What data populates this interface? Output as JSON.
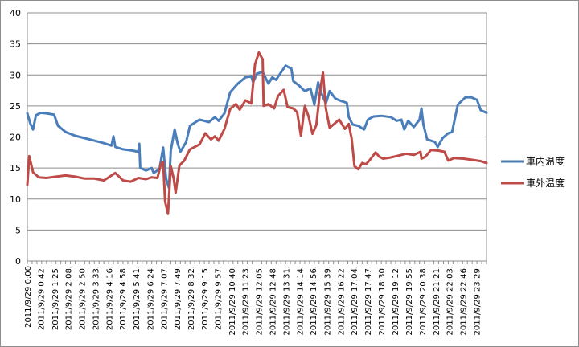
{
  "chart_data": {
    "type": "line",
    "title": "",
    "xlabel": "",
    "ylabel": "",
    "ylim": [
      0,
      40
    ],
    "yticks": [
      0,
      5,
      10,
      15,
      20,
      25,
      30,
      35,
      40
    ],
    "grid": "horizontal",
    "legend_position": "right",
    "x_tick_labels": [
      "2011/9/29 0:00",
      "2011/9/29 0:42.",
      "2011/9/29 1:25.",
      "2011/9/29 2:08.",
      "2011/9/29 2:50.",
      "2011/9/29 3:33.",
      "2011/9/29 4:16.",
      "2011/9/29 4:58.",
      "2011/9/29 5:41.",
      "2011/9/29 6:24.",
      "2011/9/29 7:07.",
      "2011/9/29 7:49.",
      "2011/9/29 8:32.",
      "2011/9/29 9:15.",
      "2011/9/29 9:57.",
      "2011/9/29 10:40.",
      "2011/9/29 11:23.",
      "2011/9/29 12:05.",
      "2011/9/29 12:48.",
      "2011/9/29 13:31.",
      "2011/9/29 14:14.",
      "2011/9/29 14:56.",
      "2011/9/29 15:39.",
      "2011/9/29 16:22.",
      "2011/9/29 17:04.",
      "2011/9/29 17:47.",
      "2011/9/29 18:30.",
      "2011/9/29 19:12.",
      "2011/9/29 19:55.",
      "2011/9/29 20:38.",
      "2011/9/29 21:21.",
      "2011/9/29 22:03.",
      "2011/9/29 22:46.",
      "2011/9/29 23:29."
    ],
    "x_hours": [
      0,
      0.7,
      1.42,
      2.13,
      2.83,
      3.55,
      4.27,
      4.97,
      5.68,
      6.4,
      7.12,
      7.82,
      8.53,
      9.25,
      9.95,
      10.67,
      11.38,
      12.08,
      12.8,
      13.52,
      14.23,
      14.93,
      15.65,
      16.37,
      17.07,
      17.78,
      18.5,
      19.2,
      19.92,
      20.63,
      21.35,
      22.05,
      22.77,
      23.48
    ],
    "x_max_hours": 24,
    "series": [
      {
        "name": "車内温度",
        "color": "#4a7ebb",
        "points": [
          [
            0,
            23.8
          ],
          [
            0.15,
            22.2
          ],
          [
            0.3,
            21.2
          ],
          [
            0.45,
            23.5
          ],
          [
            0.7,
            23.9
          ],
          [
            1.0,
            23.8
          ],
          [
            1.4,
            23.6
          ],
          [
            1.6,
            21.8
          ],
          [
            2.0,
            20.8
          ],
          [
            2.5,
            20.2
          ],
          [
            3.0,
            19.8
          ],
          [
            3.5,
            19.4
          ],
          [
            4.0,
            19.0
          ],
          [
            4.4,
            18.6
          ],
          [
            4.5,
            20.1
          ],
          [
            4.6,
            18.4
          ],
          [
            5.0,
            18.0
          ],
          [
            5.5,
            17.8
          ],
          [
            5.8,
            17.6
          ],
          [
            5.85,
            18.9
          ],
          [
            5.9,
            15.0
          ],
          [
            6.2,
            14.6
          ],
          [
            6.5,
            15.0
          ],
          [
            6.6,
            14.2
          ],
          [
            6.9,
            14.8
          ],
          [
            7.0,
            16.5
          ],
          [
            7.1,
            18.3
          ],
          [
            7.25,
            13.3
          ],
          [
            7.4,
            11.8
          ],
          [
            7.5,
            17.8
          ],
          [
            7.7,
            21.2
          ],
          [
            7.85,
            19.0
          ],
          [
            8.0,
            17.6
          ],
          [
            8.3,
            19.2
          ],
          [
            8.5,
            21.8
          ],
          [
            9.0,
            22.8
          ],
          [
            9.5,
            22.4
          ],
          [
            9.8,
            23.2
          ],
          [
            10.0,
            22.6
          ],
          [
            10.3,
            23.8
          ],
          [
            10.6,
            27.2
          ],
          [
            11.0,
            28.6
          ],
          [
            11.4,
            29.6
          ],
          [
            11.7,
            29.8
          ],
          [
            11.8,
            28.8
          ],
          [
            12.0,
            30.2
          ],
          [
            12.3,
            30.5
          ],
          [
            12.6,
            28.6
          ],
          [
            12.8,
            29.6
          ],
          [
            13.0,
            29.2
          ],
          [
            13.3,
            30.6
          ],
          [
            13.5,
            31.5
          ],
          [
            13.8,
            31.0
          ],
          [
            13.9,
            29.0
          ],
          [
            14.2,
            28.3
          ],
          [
            14.5,
            27.4
          ],
          [
            14.8,
            27.8
          ],
          [
            15.0,
            25.2
          ],
          [
            15.2,
            28.8
          ],
          [
            15.35,
            27.2
          ],
          [
            15.6,
            25.4
          ],
          [
            15.8,
            27.4
          ],
          [
            16.1,
            26.2
          ],
          [
            16.4,
            25.8
          ],
          [
            16.7,
            25.5
          ],
          [
            16.8,
            23.2
          ],
          [
            17.0,
            22.0
          ],
          [
            17.3,
            21.8
          ],
          [
            17.6,
            21.2
          ],
          [
            17.8,
            22.8
          ],
          [
            18.1,
            23.3
          ],
          [
            18.5,
            23.4
          ],
          [
            19.0,
            23.2
          ],
          [
            19.3,
            22.6
          ],
          [
            19.55,
            22.8
          ],
          [
            19.7,
            21.2
          ],
          [
            19.9,
            22.6
          ],
          [
            20.2,
            21.6
          ],
          [
            20.5,
            22.8
          ],
          [
            20.6,
            24.6
          ],
          [
            20.7,
            22.0
          ],
          [
            20.9,
            19.6
          ],
          [
            21.3,
            19.2
          ],
          [
            21.45,
            18.4
          ],
          [
            21.7,
            19.8
          ],
          [
            22.0,
            20.6
          ],
          [
            22.2,
            20.8
          ],
          [
            22.5,
            25.2
          ],
          [
            22.9,
            26.4
          ],
          [
            23.2,
            26.4
          ],
          [
            23.5,
            26.0
          ],
          [
            23.7,
            24.3
          ],
          [
            24.0,
            23.9
          ]
        ]
      },
      {
        "name": "車外温度",
        "color": "#be4b48",
        "points": [
          [
            0,
            12.3
          ],
          [
            0.1,
            16.9
          ],
          [
            0.3,
            14.3
          ],
          [
            0.6,
            13.5
          ],
          [
            1.0,
            13.4
          ],
          [
            1.5,
            13.6
          ],
          [
            2.0,
            13.8
          ],
          [
            2.5,
            13.6
          ],
          [
            3.0,
            13.3
          ],
          [
            3.5,
            13.3
          ],
          [
            4.0,
            13.0
          ],
          [
            4.6,
            14.2
          ],
          [
            5.0,
            13.0
          ],
          [
            5.4,
            12.8
          ],
          [
            5.8,
            13.4
          ],
          [
            6.2,
            13.2
          ],
          [
            6.5,
            13.5
          ],
          [
            6.8,
            13.4
          ],
          [
            7.0,
            15.8
          ],
          [
            7.1,
            16.0
          ],
          [
            7.2,
            9.6
          ],
          [
            7.35,
            7.6
          ],
          [
            7.5,
            15.3
          ],
          [
            7.65,
            13.3
          ],
          [
            7.75,
            11.0
          ],
          [
            7.95,
            15.4
          ],
          [
            8.2,
            16.2
          ],
          [
            8.5,
            18.0
          ],
          [
            9.0,
            18.8
          ],
          [
            9.3,
            20.6
          ],
          [
            9.6,
            19.6
          ],
          [
            9.8,
            20.1
          ],
          [
            10.0,
            19.4
          ],
          [
            10.3,
            21.3
          ],
          [
            10.6,
            24.5
          ],
          [
            10.9,
            25.3
          ],
          [
            11.1,
            24.4
          ],
          [
            11.4,
            25.9
          ],
          [
            11.7,
            25.4
          ],
          [
            11.9,
            31.7
          ],
          [
            12.1,
            33.6
          ],
          [
            12.3,
            32.5
          ],
          [
            12.35,
            25.0
          ],
          [
            12.6,
            25.3
          ],
          [
            12.9,
            24.6
          ],
          [
            13.1,
            26.6
          ],
          [
            13.4,
            27.6
          ],
          [
            13.6,
            24.8
          ],
          [
            13.9,
            24.6
          ],
          [
            14.1,
            24.0
          ],
          [
            14.3,
            20.2
          ],
          [
            14.5,
            25.0
          ],
          [
            14.7,
            23.3
          ],
          [
            14.9,
            20.5
          ],
          [
            15.1,
            21.9
          ],
          [
            15.3,
            27.4
          ],
          [
            15.45,
            30.4
          ],
          [
            15.6,
            24.6
          ],
          [
            15.8,
            21.5
          ],
          [
            16.0,
            22.0
          ],
          [
            16.3,
            22.8
          ],
          [
            16.6,
            21.3
          ],
          [
            16.8,
            22.1
          ],
          [
            16.95,
            19.7
          ],
          [
            17.1,
            15.3
          ],
          [
            17.3,
            14.8
          ],
          [
            17.5,
            15.8
          ],
          [
            17.7,
            15.6
          ],
          [
            17.9,
            16.3
          ],
          [
            18.2,
            17.5
          ],
          [
            18.4,
            16.8
          ],
          [
            18.6,
            16.5
          ],
          [
            19.0,
            16.7
          ],
          [
            19.4,
            17.0
          ],
          [
            19.8,
            17.3
          ],
          [
            20.2,
            17.1
          ],
          [
            20.55,
            17.6
          ],
          [
            20.6,
            16.5
          ],
          [
            20.8,
            16.8
          ],
          [
            21.1,
            17.9
          ],
          [
            21.5,
            17.8
          ],
          [
            21.8,
            17.6
          ],
          [
            22.0,
            16.2
          ],
          [
            22.3,
            16.6
          ],
          [
            22.8,
            16.5
          ],
          [
            23.3,
            16.3
          ],
          [
            23.7,
            16.1
          ],
          [
            24.0,
            15.8
          ]
        ]
      }
    ]
  }
}
